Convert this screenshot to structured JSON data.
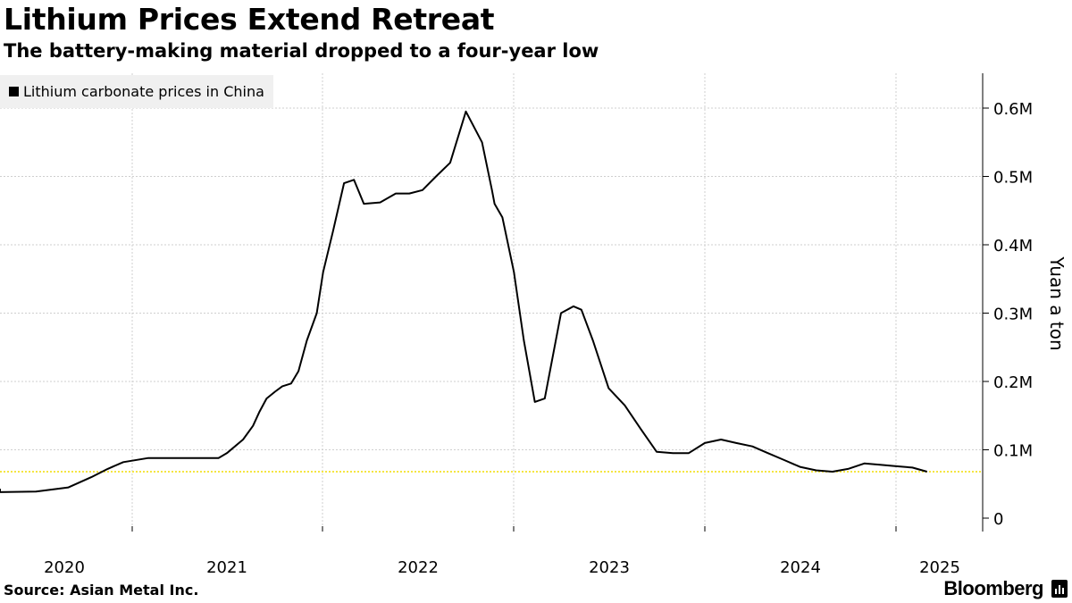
{
  "title": "Lithium Prices Extend Retreat",
  "subtitle": "The battery-making material dropped to a four-year low",
  "source": "Source: Asian Metal Inc.",
  "brand": "Bloomberg",
  "chart_data": {
    "type": "line",
    "ylabel": "Yuan a ton",
    "ylim": [
      0,
      650000
    ],
    "xlim": [
      "2019-09-01",
      "2025-03-31"
    ],
    "y_ticks": [
      0,
      100000,
      200000,
      300000,
      400000,
      500000,
      600000
    ],
    "y_tick_labels": [
      "0",
      "0.1M",
      "0.2M",
      "0.3M",
      "0.4M",
      "0.5M",
      "0.6M"
    ],
    "x_tick_labels": [
      "2020",
      "2021",
      "2022",
      "2023",
      "2024",
      "2025"
    ],
    "grid": true,
    "legend_position": "top-left",
    "reference_line": {
      "value": 68000,
      "color": "#f5e642"
    },
    "series": [
      {
        "name": "Lithium carbonate prices in China",
        "color": "#000000",
        "x": [
          "2019-09-01",
          "2019-10-15",
          "2020-01-01",
          "2020-04-01",
          "2020-07-01",
          "2020-09-01",
          "2020-10-15",
          "2020-11-15",
          "2020-12-15",
          "2021-02-01",
          "2021-03-15",
          "2021-04-15",
          "2021-05-15",
          "2021-06-15",
          "2021-07-01",
          "2021-08-01",
          "2021-08-20",
          "2021-09-01",
          "2021-09-15",
          "2021-10-01",
          "2021-10-15",
          "2021-11-01",
          "2021-11-15",
          "2021-12-01",
          "2021-12-20",
          "2022-01-01",
          "2022-01-20",
          "2022-02-10",
          "2022-03-01",
          "2022-03-20",
          "2022-04-20",
          "2022-05-20",
          "2022-06-15",
          "2022-07-10",
          "2022-08-05",
          "2022-09-01",
          "2022-10-01",
          "2022-11-01",
          "2022-11-20",
          "2022-11-25",
          "2022-12-10",
          "2023-01-01",
          "2023-01-20",
          "2023-02-10",
          "2023-03-01",
          "2023-04-01",
          "2023-04-25",
          "2023-05-10",
          "2023-06-01",
          "2023-07-01",
          "2023-08-01",
          "2023-09-01",
          "2023-10-01",
          "2023-11-01",
          "2023-12-01",
          "2024-01-01",
          "2024-02-01",
          "2024-03-01",
          "2024-04-01",
          "2024-05-01",
          "2024-06-01",
          "2024-07-01",
          "2024-08-01",
          "2024-09-01",
          "2024-10-01",
          "2024-11-01",
          "2024-12-01",
          "2025-01-01",
          "2025-02-01",
          "2025-03-01"
        ],
        "values": [
          43000,
          40000,
          38000,
          38000,
          39000,
          45000,
          60000,
          72000,
          82000,
          88000,
          88000,
          88000,
          88000,
          88000,
          95000,
          115000,
          135000,
          155000,
          175000,
          185000,
          193000,
          197000,
          215000,
          260000,
          300000,
          360000,
          420000,
          490000,
          495000,
          460000,
          462000,
          475000,
          475000,
          480000,
          500000,
          520000,
          595000,
          550000,
          480000,
          460000,
          440000,
          360000,
          260000,
          170000,
          175000,
          300000,
          310000,
          305000,
          260000,
          190000,
          165000,
          130000,
          97000,
          95000,
          95000,
          110000,
          115000,
          110000,
          105000,
          95000,
          85000,
          75000,
          70000,
          68000,
          72000,
          80000,
          78000,
          76000,
          74000,
          68000
        ]
      }
    ]
  }
}
